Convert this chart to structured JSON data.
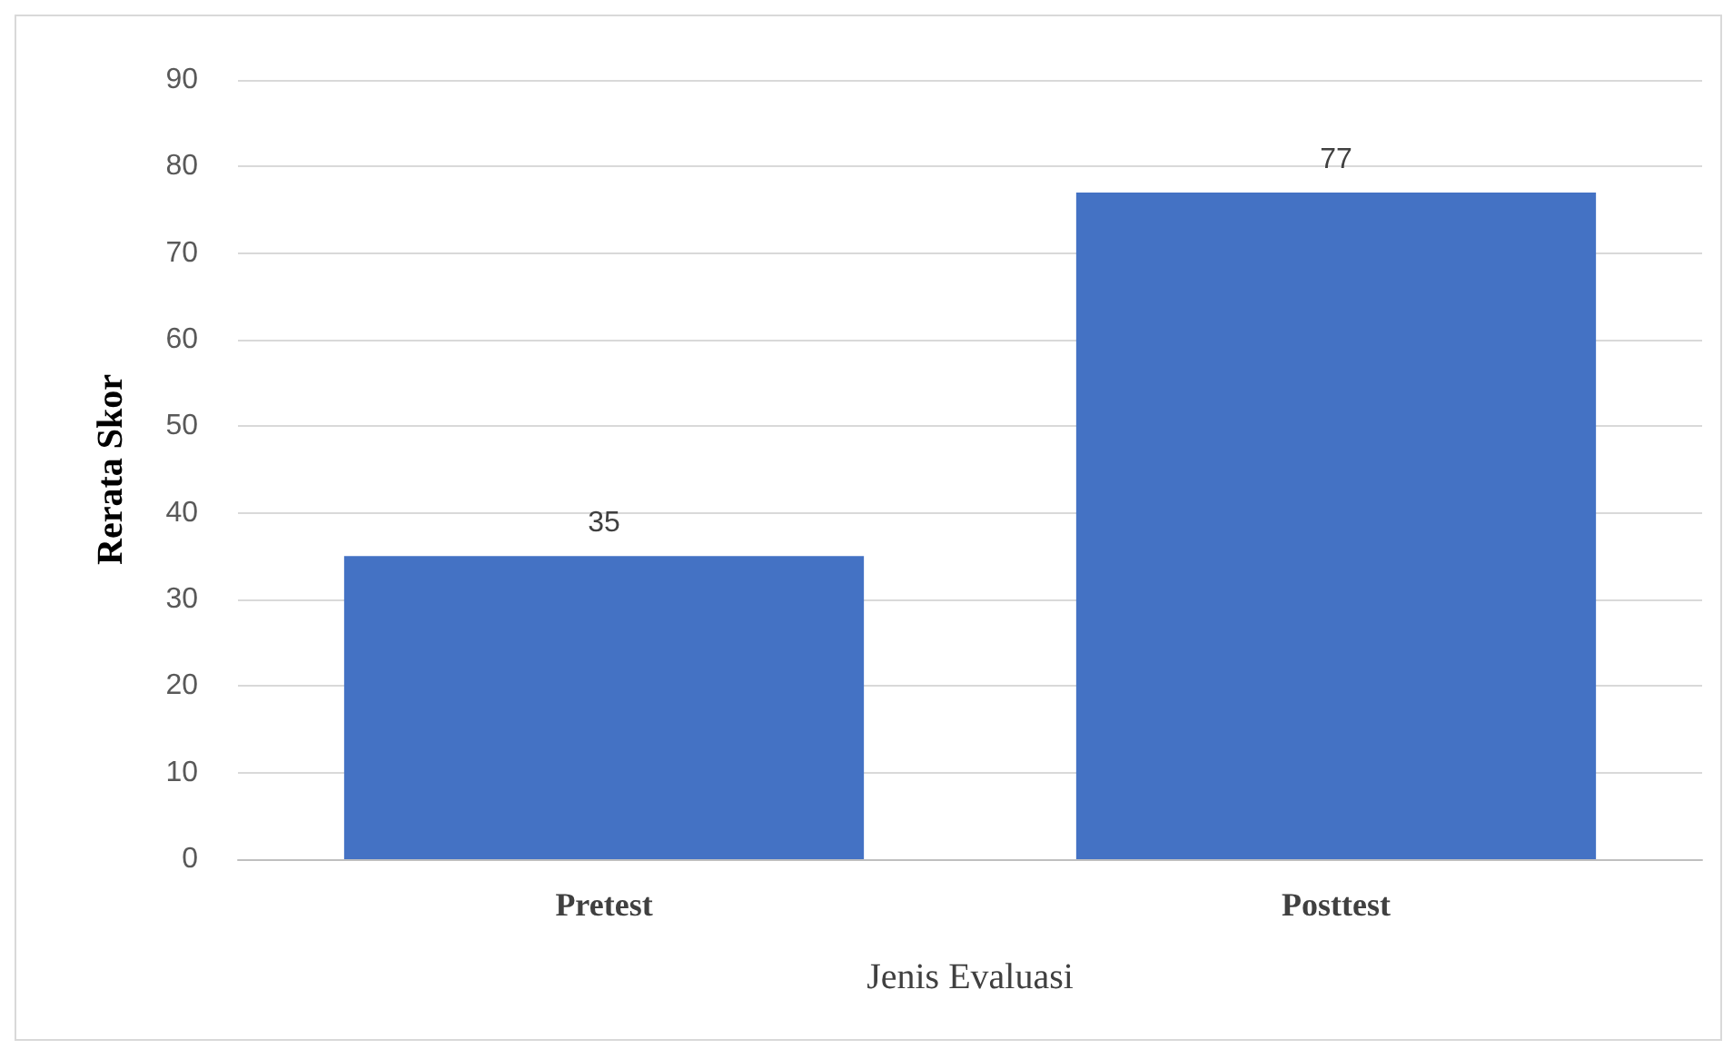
{
  "chart_data": {
    "type": "bar",
    "xlabel": "Jenis Evaluasi",
    "ylabel": "Rerata Skor",
    "categories": [
      "Pretest",
      "Posttest"
    ],
    "values": [
      35,
      77
    ],
    "color": "#4472c4",
    "ylim": [
      0,
      90
    ],
    "yticks": [
      0,
      10,
      20,
      30,
      40,
      50,
      60,
      70,
      80,
      90
    ],
    "grid": "y",
    "data_labels": true
  }
}
